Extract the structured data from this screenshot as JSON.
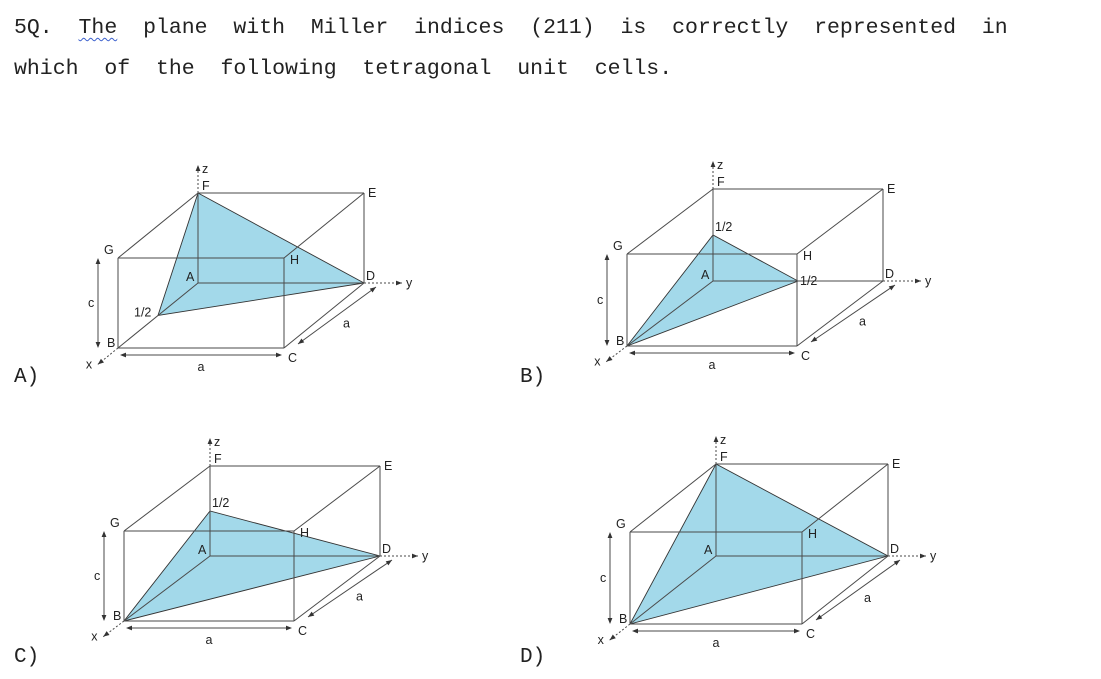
{
  "question": {
    "number": "5Q.",
    "line1_words": [
      "The",
      "plane",
      "with",
      "Miller",
      "indices",
      "(211)",
      "is",
      "correctly",
      "represented",
      "in"
    ],
    "line2_words": [
      "which",
      "of",
      "the",
      "following",
      "tetragonal",
      "unit",
      "cells."
    ]
  },
  "colors": {
    "plane_fill": "#a3d9ea",
    "edge": "#4a4a4a",
    "squiggle_underline": "#3a5fcd"
  },
  "options": [
    {
      "label": "A)",
      "plane_vertices": [
        "F",
        "D",
        "half_x"
      ],
      "labels": {
        "z": "z",
        "y": "y",
        "x": "x",
        "F": "F",
        "E": "E",
        "G": "G",
        "H": "H",
        "A": "A",
        "D": "D",
        "B": "B",
        "C": "C",
        "a_bottom": "a",
        "a_side": "a",
        "c_side": "c",
        "half_a": "1/2"
      }
    },
    {
      "label": "B)",
      "plane_vertices": [
        "B",
        "half_z",
        "half_y"
      ],
      "labels": {
        "z": "z",
        "y": "y",
        "x": "x",
        "F": "F",
        "E": "E",
        "G": "G",
        "H": "H",
        "A": "A",
        "D": "D",
        "B": "B",
        "C": "C",
        "a_bottom": "a",
        "a_side": "a",
        "c_side": "c",
        "half_a": "1/2",
        "half_b": "1/2"
      }
    },
    {
      "label": "C)",
      "plane_vertices": [
        "B",
        "half_z",
        "D"
      ],
      "labels": {
        "z": "z",
        "y": "y",
        "x": "x",
        "F": "F",
        "E": "E",
        "G": "G",
        "H": "H",
        "A": "A",
        "D": "D",
        "B": "B",
        "C": "C",
        "a_bottom": "a",
        "a_side": "a",
        "c_side": "c",
        "half_a": "1/2"
      }
    },
    {
      "label": "D)",
      "plane_vertices": [
        "B",
        "F",
        "D"
      ],
      "labels": {
        "z": "z",
        "y": "y",
        "x": "x",
        "F": "F",
        "E": "E",
        "G": "G",
        "H": "H",
        "A": "A",
        "D": "D",
        "B": "B",
        "C": "C",
        "a_bottom": "a",
        "a_side": "a",
        "c_side": "c"
      }
    }
  ]
}
